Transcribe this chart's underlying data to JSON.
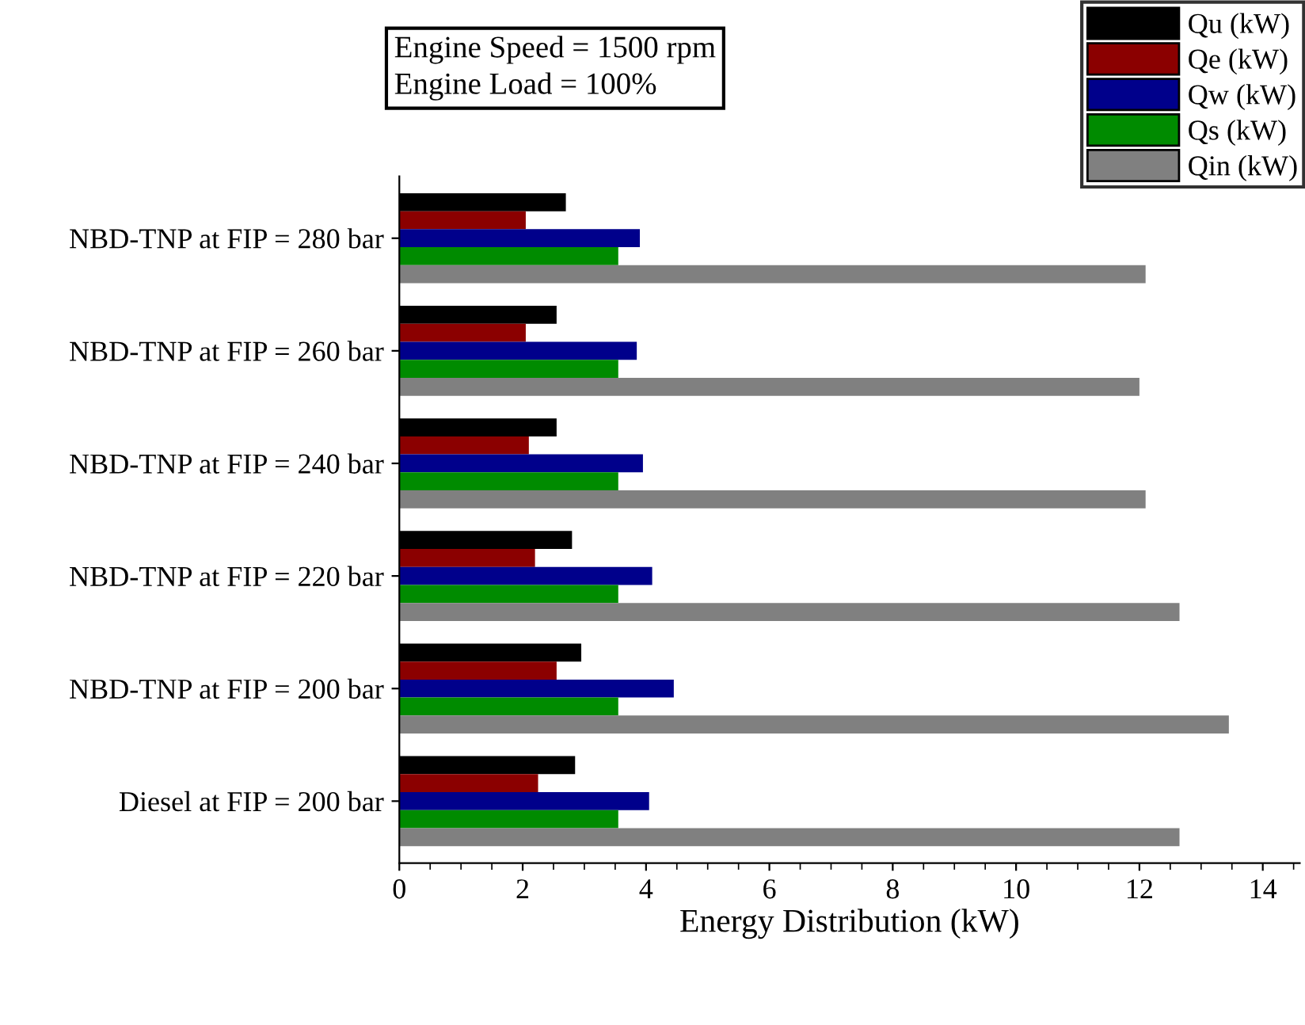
{
  "chart_data": {
    "type": "bar",
    "orientation": "horizontal",
    "xlabel": "Energy Distribution (kW)",
    "annotations": [
      "Engine Speed = 1500 rpm\nEngine Load = 100%"
    ],
    "categories": [
      "NBD-TNP at FIP = 280 bar",
      "NBD-TNP at FIP = 260 bar",
      "NBD-TNP at FIP = 240 bar",
      "NBD-TNP at FIP = 220 bar",
      "NBD-TNP at FIP = 200 bar",
      "Diesel at FIP = 200 bar"
    ],
    "series": [
      {
        "name": "Qu (kW)",
        "color": "#000000",
        "values": [
          2.7,
          2.55,
          2.55,
          2.8,
          2.95,
          2.85
        ]
      },
      {
        "name": "Qe (kW)",
        "color": "#8b0000",
        "values": [
          2.05,
          2.05,
          2.1,
          2.2,
          2.55,
          2.25
        ]
      },
      {
        "name": "Qw (kW)",
        "color": "#00008b",
        "values": [
          3.9,
          3.85,
          3.95,
          4.1,
          4.45,
          4.05
        ]
      },
      {
        "name": "Qs (kW)",
        "color": "#008b00",
        "values": [
          3.55,
          3.55,
          3.55,
          3.55,
          3.55,
          3.55
        ]
      },
      {
        "name": "Qin (kW)",
        "color": "#808080",
        "values": [
          12.1,
          12.0,
          12.1,
          12.65,
          13.45,
          12.65
        ]
      }
    ],
    "xlim": [
      0,
      14.6
    ],
    "xticks": [
      0,
      2,
      4,
      6,
      8,
      10,
      12,
      14
    ],
    "grid": false,
    "legend": "top right"
  }
}
